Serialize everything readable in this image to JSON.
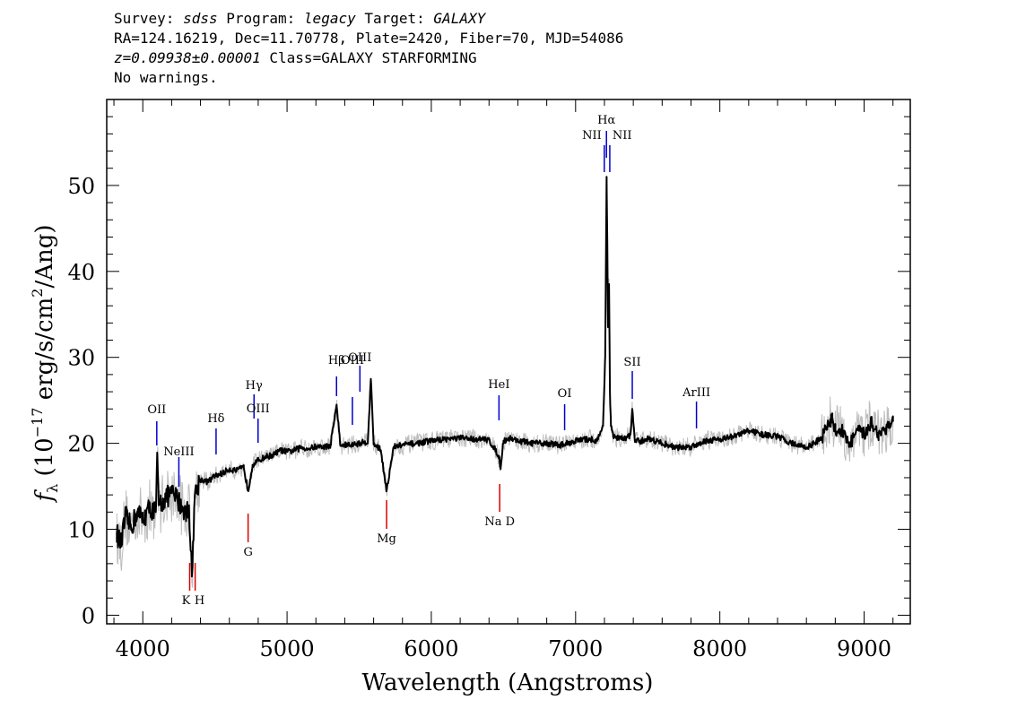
{
  "header": {
    "line1": {
      "a": "Survey: ",
      "b": "sdss",
      "c": " Program: ",
      "d": "legacy",
      "e": " Target: ",
      "f": "GALAXY"
    },
    "line2": "RA=124.16219, Dec=11.70778, Plate=2420, Fiber=70, MJD=54086",
    "line3": {
      "a": "z=0.09938±0.00001",
      "b": " Class=GALAXY STARFORMING"
    },
    "line4": "No warnings."
  },
  "colors": {
    "emission": "#0000cc",
    "absorption": "#dd0000",
    "flux": "#000000",
    "flux_noisy": "#bdbdbd"
  },
  "chart_data": {
    "type": "line",
    "title": "",
    "xlabel": "Wavelength (Angstroms)",
    "ylabel_parts": {
      "f": "f",
      "sub": "λ",
      "open": " (10",
      "exp": "−17",
      "mid": " erg/s/cm",
      "exp2": "2",
      "close": "/Ang)"
    },
    "xlim": [
      3750,
      9320
    ],
    "ylim": [
      -1,
      60
    ],
    "xticks": [
      4000,
      5000,
      6000,
      7000,
      8000,
      9000
    ],
    "yticks": [
      0,
      10,
      20,
      30,
      40,
      50
    ],
    "series": [
      {
        "x": [
          3820,
          3850,
          3880,
          3920,
          3960,
          4000,
          4050,
          4090,
          4101,
          4110,
          4150,
          4200,
          4240,
          4280,
          4300,
          4320,
          4340,
          4360,
          4380,
          4400,
          4450,
          4500,
          4550,
          4600,
          4650,
          4700,
          4730,
          4761,
          4800,
          4862,
          4900,
          4959,
          5000,
          5050,
          5100,
          5150,
          5200,
          5250,
          5300,
          5343,
          5370,
          5400,
          5450,
          5500,
          5560,
          5581,
          5600,
          5650,
          5690,
          5740,
          5800,
          5900,
          6000,
          6100,
          6200,
          6300,
          6400,
          6470,
          6480,
          6500,
          6550,
          6600,
          6700,
          6800,
          6900,
          7000,
          7100,
          7150,
          7190,
          7205,
          7215,
          7220,
          7225,
          7232,
          7238,
          7245,
          7260,
          7300,
          7340,
          7380,
          7393,
          7410,
          7450,
          7500,
          7600,
          7700,
          7800,
          7900,
          8000,
          8100,
          8200,
          8300,
          8400,
          8500,
          8600,
          8700,
          8780,
          8800,
          8850,
          8900,
          8950,
          9000,
          9050,
          9100,
          9150,
          9200
        ],
        "y": [
          9.5,
          8.2,
          11.5,
          10.2,
          12.0,
          11.2,
          12.5,
          12.0,
          18.5,
          12.8,
          13.5,
          14.2,
          13.5,
          12.5,
          11.8,
          12.8,
          4.5,
          13.8,
          15.0,
          15.8,
          15.5,
          16.2,
          16.5,
          17.0,
          16.8,
          17.2,
          14.5,
          17.5,
          18.0,
          18.5,
          18.6,
          19.2,
          19.0,
          19.2,
          19.5,
          19.4,
          19.6,
          19.6,
          19.7,
          24.5,
          19.7,
          19.8,
          19.8,
          20.0,
          20.2,
          27.5,
          20.0,
          19.2,
          14.5,
          19.6,
          19.8,
          20.0,
          20.3,
          20.5,
          20.6,
          20.5,
          20.4,
          18.5,
          17.0,
          20.3,
          20.6,
          20.3,
          20.0,
          20.0,
          19.8,
          20.3,
          20.5,
          20.3,
          22.0,
          30.0,
          51.0,
          43.0,
          33.5,
          38.5,
          26.0,
          22.0,
          20.8,
          20.6,
          20.5,
          21.0,
          24.0,
          20.3,
          20.2,
          20.6,
          20.0,
          19.5,
          19.6,
          20.3,
          20.5,
          20.8,
          21.5,
          21.0,
          20.8,
          20.0,
          19.5,
          20.5,
          23.0,
          21.5,
          21.5,
          19.8,
          21.5,
          21.0,
          22.5,
          21.0,
          21.8,
          22.5
        ]
      }
    ],
    "lines": [
      {
        "label": "OII",
        "x": 4097,
        "type": "emission"
      },
      {
        "label": "NeIII",
        "x": 4250,
        "type": "emission"
      },
      {
        "label": "Hδ",
        "x": 4508,
        "type": "emission"
      },
      {
        "label": "Hγ",
        "x": 4771,
        "type": "emission"
      },
      {
        "label": "OIII",
        "x": 4799,
        "type": "emission"
      },
      {
        "label": "Hβ",
        "x": 5343,
        "type": "emission"
      },
      {
        "label": "OIII",
        "x": 5453,
        "type": "emission"
      },
      {
        "label": "OIII",
        "x": 5505,
        "type": "emission"
      },
      {
        "label": "HeI",
        "x": 6469,
        "type": "emission"
      },
      {
        "label": "OI",
        "x": 6924,
        "type": "emission"
      },
      {
        "label": "NII",
        "x": 7199,
        "type": "emission"
      },
      {
        "label": "Hα",
        "x": 7214,
        "type": "emission"
      },
      {
        "label": "NII",
        "x": 7237,
        "type": "emission"
      },
      {
        "label": "SII",
        "x": 7393,
        "type": "emission"
      },
      {
        "label": "ArIII",
        "x": 7838,
        "type": "emission"
      },
      {
        "label": "K",
        "x": 4325,
        "type": "absorption"
      },
      {
        "label": "H",
        "x": 4363,
        "type": "absorption"
      },
      {
        "label": "G",
        "x": 4730,
        "type": "absorption"
      },
      {
        "label": "Mg",
        "x": 5690,
        "type": "absorption"
      },
      {
        "label": "Na D",
        "x": 6474,
        "type": "absorption"
      }
    ]
  }
}
